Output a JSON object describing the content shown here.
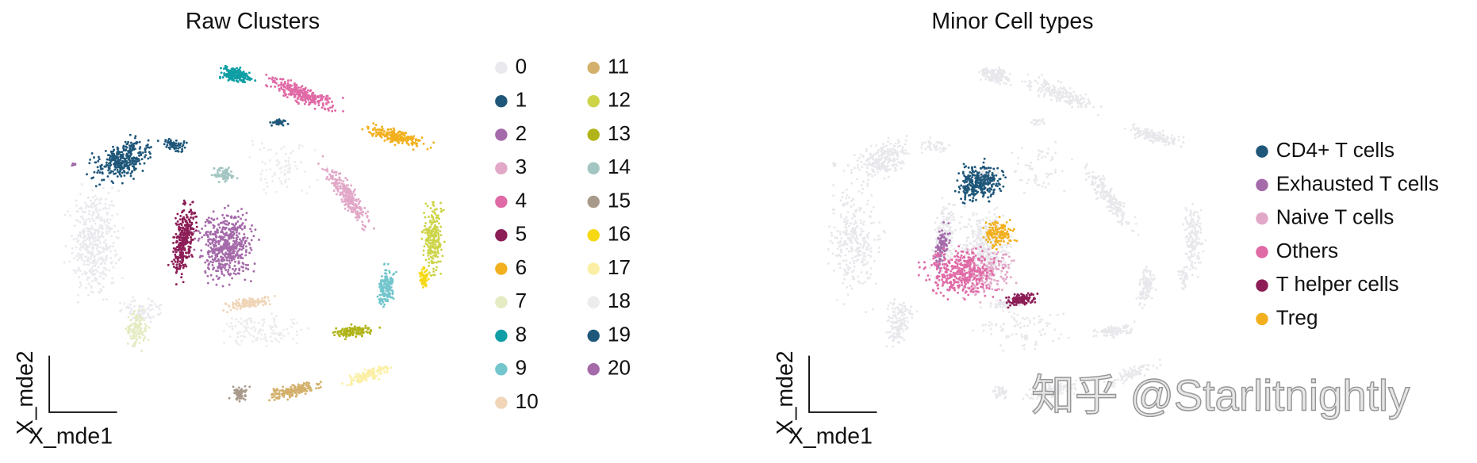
{
  "panels": [
    {
      "title": "Raw Clusters",
      "x_label": "X_mde1",
      "y_label": "X_mde2",
      "legend": [
        {
          "label": "0",
          "color": "#e9e9ee"
        },
        {
          "label": "1",
          "color": "#1f577a"
        },
        {
          "label": "2",
          "color": "#a56aaa"
        },
        {
          "label": "3",
          "color": "#e2a8c8"
        },
        {
          "label": "4",
          "color": "#e06aa6"
        },
        {
          "label": "5",
          "color": "#8c1d56"
        },
        {
          "label": "6",
          "color": "#f2b01e"
        },
        {
          "label": "7",
          "color": "#e5ebc3"
        },
        {
          "label": "8",
          "color": "#0f9ea5"
        },
        {
          "label": "9",
          "color": "#74c6cd"
        },
        {
          "label": "10",
          "color": "#f0d5b8"
        },
        {
          "label": "11",
          "color": "#d3b06b"
        },
        {
          "label": "12",
          "color": "#cdd448"
        },
        {
          "label": "13",
          "color": "#b1b418"
        },
        {
          "label": "14",
          "color": "#a4c6c2"
        },
        {
          "label": "15",
          "color": "#a89a8a"
        },
        {
          "label": "16",
          "color": "#f6d813"
        },
        {
          "label": "17",
          "color": "#fbefa5"
        },
        {
          "label": "18",
          "color": "#ececec"
        },
        {
          "label": "19",
          "color": "#1f577a"
        },
        {
          "label": "20",
          "color": "#a56aaa"
        }
      ]
    },
    {
      "title": "Minor Cell types",
      "x_label": "X_mde1",
      "y_label": "X_mde2",
      "legend": [
        {
          "label": "CD4+ T cells",
          "color": "#1f577a"
        },
        {
          "label": "Exhausted T cells",
          "color": "#a56aaa"
        },
        {
          "label": "Naive T cells",
          "color": "#e2a8c8"
        },
        {
          "label": "Others",
          "color": "#e06aa6"
        },
        {
          "label": "T helper cells",
          "color": "#8c1d56"
        },
        {
          "label": "Treg",
          "color": "#f2b01e"
        }
      ]
    }
  ],
  "watermark": "知乎 @Starlitnightly"
}
